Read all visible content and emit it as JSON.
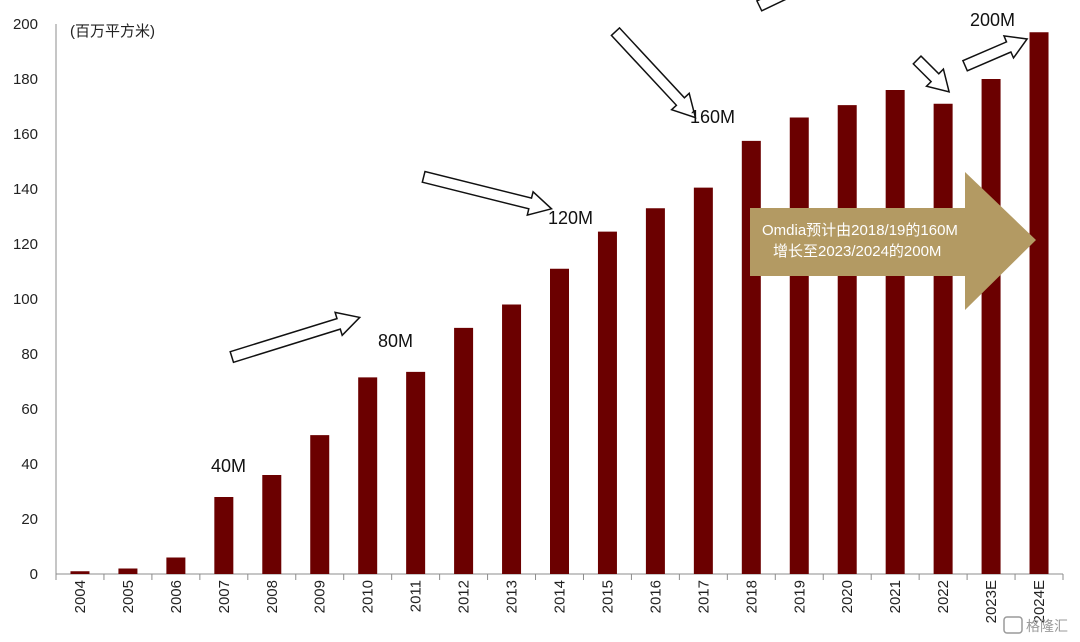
{
  "chart_data": {
    "type": "bar",
    "ylabel": "(百万平方米)",
    "ylim": [
      0,
      200
    ],
    "yticks": [
      0,
      20,
      40,
      60,
      80,
      100,
      120,
      140,
      160,
      180,
      200
    ],
    "categories": [
      "2004",
      "2005",
      "2006",
      "2007",
      "2008",
      "2009",
      "2010",
      "2011",
      "2012",
      "2013",
      "2014",
      "2015",
      "2016",
      "2017",
      "2018",
      "2019",
      "2020",
      "2021",
      "2022",
      "2023E",
      "2024E"
    ],
    "values": [
      1,
      2,
      6,
      28,
      36,
      50.5,
      71.5,
      73.5,
      89.5,
      98,
      111,
      124.5,
      133,
      140.5,
      157.5,
      166,
      170.5,
      176,
      171,
      180,
      197
    ],
    "bar_color": "#6b0000",
    "milestones": [
      "40M",
      "80M",
      "120M",
      "160M",
      "200M"
    ],
    "callout": {
      "line1": "Omdia预计由2018/19的160M",
      "line2": "增长至2023/2024的200M",
      "color": "#b39a63"
    },
    "grid": false,
    "legend": "none"
  },
  "watermark": "格隆汇"
}
